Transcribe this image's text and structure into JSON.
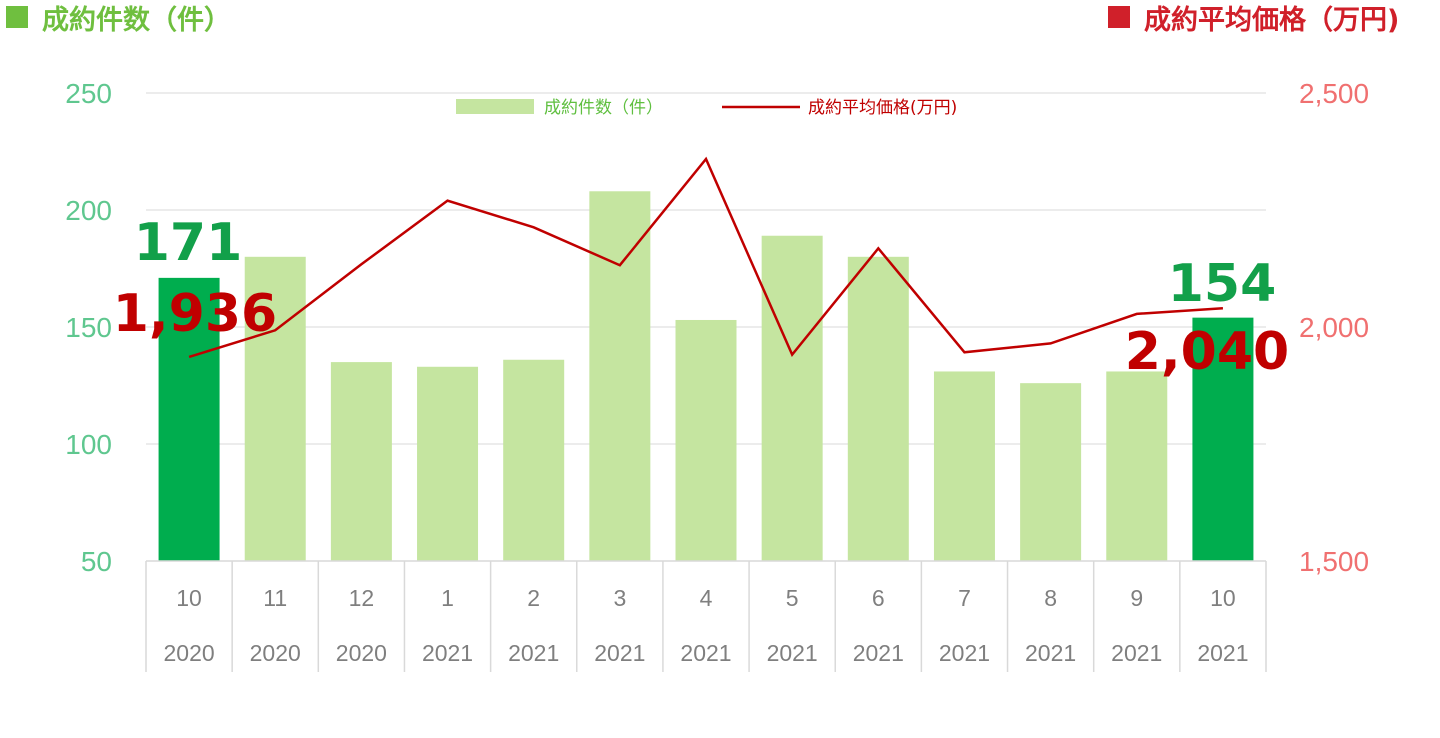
{
  "header": {
    "left_marker_color": "#6fbf3f",
    "left_title": "成約件数（件）",
    "right_marker_color": "#d0202a",
    "right_title": "成約平均価格（万円)"
  },
  "colors": {
    "bar": "#c5e5a0",
    "bar_highlight": "#00ad4e",
    "line": "#c00000",
    "left_axis": "#5fc78f",
    "right_axis": "#f07070",
    "callout_count": "#12a04a",
    "callout_price": "#c00000",
    "grid": "#d9d9d9"
  },
  "callouts": {
    "start_count": "171",
    "start_price": "1,936",
    "end_count": "154",
    "end_price": "2,040"
  },
  "chart_data": {
    "type": "bar",
    "months": [
      "10",
      "11",
      "12",
      "1",
      "2",
      "3",
      "4",
      "5",
      "6",
      "7",
      "8",
      "9",
      "10"
    ],
    "years": [
      "2020",
      "2020",
      "2020",
      "2021",
      "2021",
      "2021",
      "2021",
      "2021",
      "2021",
      "2021",
      "2021",
      "2021",
      "2021"
    ],
    "series": [
      {
        "name": "成約件数（件）",
        "type": "bar",
        "axis": "left",
        "values": [
          171,
          180,
          135,
          133,
          136,
          208,
          153,
          189,
          180,
          131,
          126,
          131,
          154
        ],
        "highlight": [
          0,
          12
        ]
      },
      {
        "name": "成約平均価格(万円)",
        "type": "line",
        "axis": "right",
        "values": [
          1936,
          1993,
          2134,
          2270,
          2213,
          2132,
          2359,
          1941,
          2168,
          1946,
          1965,
          2028,
          2040
        ]
      }
    ],
    "left_axis": {
      "ticks": [
        "50",
        "100",
        "150",
        "200",
        "250"
      ],
      "range": [
        50,
        250
      ]
    },
    "right_axis": {
      "ticks": [
        "1,500",
        "2,000",
        "2,500"
      ],
      "range": [
        1500,
        2500
      ]
    },
    "legend_position": "top-center",
    "grid": true
  }
}
